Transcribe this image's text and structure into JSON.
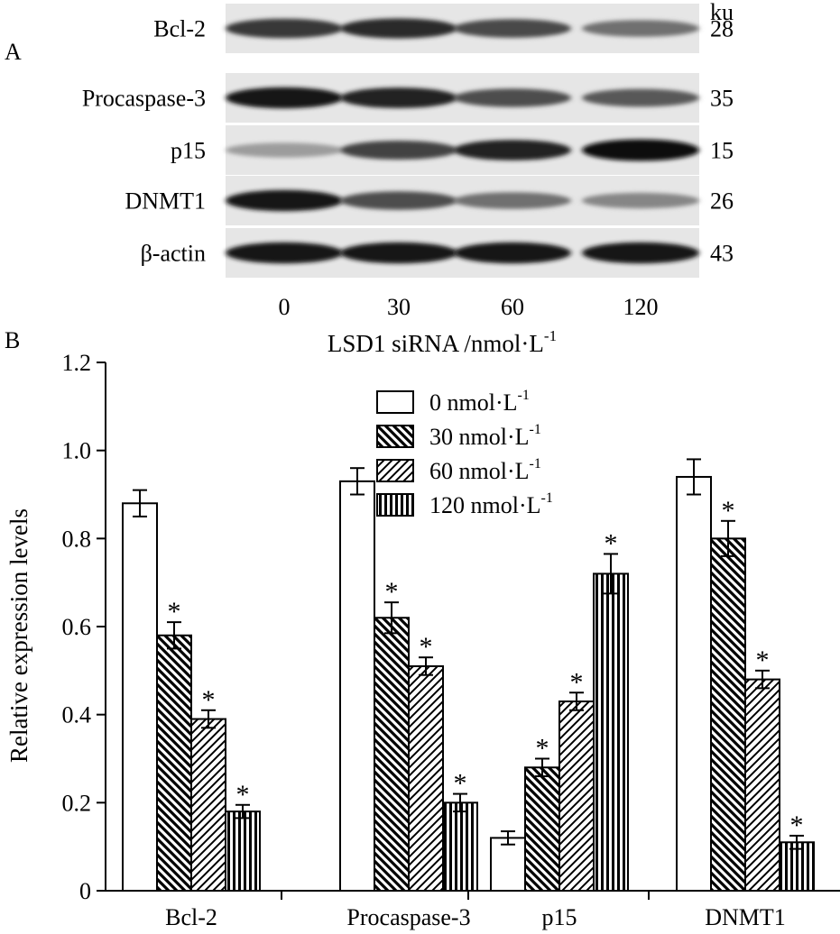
{
  "panel_a": {
    "label": "A",
    "unit_label": "ku",
    "bands": [
      {
        "protein": "Bcl-2",
        "kda": "28",
        "intensities": [
          0.8,
          0.85,
          0.72,
          0.55
        ]
      },
      {
        "protein": "Procaspase-3",
        "kda": "35",
        "intensities": [
          0.95,
          0.9,
          0.7,
          0.65
        ]
      },
      {
        "protein": "p15",
        "kda": "15",
        "intensities": [
          0.35,
          0.75,
          0.9,
          1.0
        ]
      },
      {
        "protein": "DNMT1",
        "kda": "26",
        "intensities": [
          0.95,
          0.7,
          0.55,
          0.45
        ]
      },
      {
        "protein": "β-actin",
        "kda": "43",
        "intensities": [
          0.95,
          0.95,
          0.95,
          0.95
        ]
      }
    ],
    "lanes": [
      "0",
      "30",
      "60",
      "120"
    ],
    "xlabel_main": "LSD1 siRNA /nmol·L",
    "xlabel_sup": "-1"
  },
  "chart_data": {
    "type": "bar",
    "panel_label": "B",
    "categories": [
      "Bcl-2",
      "Procaspase-3",
      "p15",
      "DNMT1"
    ],
    "series": [
      {
        "name": "0 nmol·L",
        "sup": "-1",
        "pattern": "none",
        "values": [
          0.88,
          0.93,
          0.12,
          0.94
        ],
        "errors": [
          0.03,
          0.03,
          0.015,
          0.04
        ],
        "sig": [
          false,
          false,
          false,
          false
        ]
      },
      {
        "name": "30 nmol·L",
        "sup": "-1",
        "pattern": "diag-back",
        "values": [
          0.58,
          0.62,
          0.28,
          0.8
        ],
        "errors": [
          0.03,
          0.035,
          0.02,
          0.04
        ],
        "sig": [
          true,
          true,
          true,
          true
        ]
      },
      {
        "name": "60 nmol·L",
        "sup": "-1",
        "pattern": "diag-fwd",
        "values": [
          0.39,
          0.51,
          0.43,
          0.48
        ],
        "errors": [
          0.02,
          0.02,
          0.02,
          0.02
        ],
        "sig": [
          true,
          true,
          true,
          true
        ]
      },
      {
        "name": "120 nmol·L",
        "sup": "-1",
        "pattern": "vertical",
        "values": [
          0.18,
          0.2,
          0.72,
          0.11
        ],
        "errors": [
          0.015,
          0.02,
          0.045,
          0.015
        ],
        "sig": [
          true,
          true,
          true,
          true
        ]
      }
    ],
    "ylabel": "Relative expression levels",
    "ylim": [
      0,
      1.2
    ],
    "yticks": [
      "0",
      "0.2",
      "0.4",
      "0.6",
      "0.8",
      "1.0",
      "1.2"
    ],
    "sig_marker": "*",
    "legend_position": "top-right",
    "grid": false
  }
}
